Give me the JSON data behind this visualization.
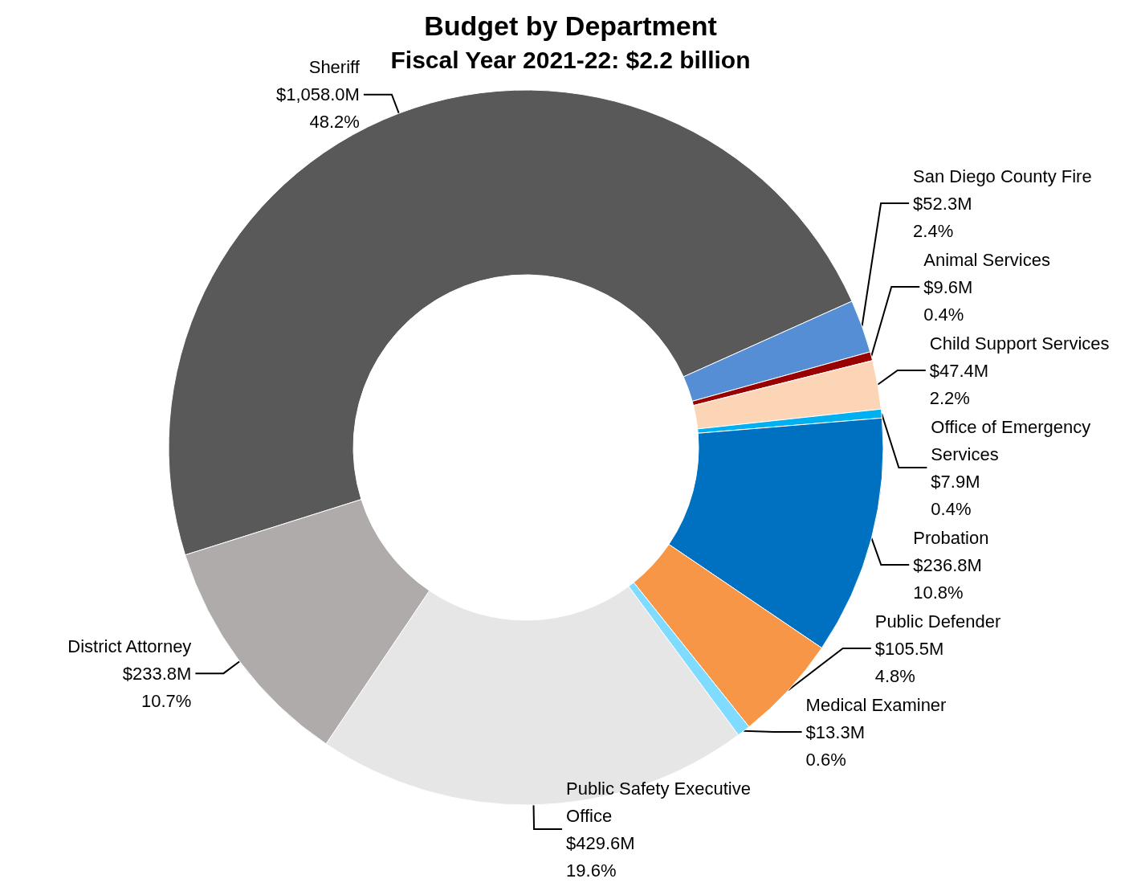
{
  "chart_data": {
    "type": "donut",
    "title": "Budget by Department",
    "subtitle": "Fiscal Year 2021-22: $2.2 billion",
    "categories": [
      "Sheriff",
      "San Diego County Fire",
      "Animal Services",
      "Child Support Services",
      "Office of Emergency Services",
      "Probation",
      "Public Defender",
      "Medical Examiner",
      "Public Safety Executive Office",
      "District Attorney"
    ],
    "values": [
      48.2,
      2.4,
      0.4,
      2.2,
      0.4,
      10.8,
      4.8,
      0.6,
      19.6,
      10.7
    ],
    "value_labels": [
      "$1,058.0M\n48.2%",
      "$52.3M\n2.4%",
      "$9.6M\n0.4%",
      "$47.4M\n2.2%",
      "$7.9M\n0.4%",
      "$236.8M\n10.8%",
      "$105.5M\n4.8%",
      "$13.3M\n0.6%",
      "$429.6M\n19.6%",
      "$233.8M\n10.7%"
    ],
    "colors": [
      "#595959",
      "#558ed5",
      "#990000",
      "#fbd5b5",
      "#00b0f0",
      "#0070c0",
      "#f79646",
      "#7fdbff",
      "#e6e6e6",
      "#afabab"
    ]
  }
}
